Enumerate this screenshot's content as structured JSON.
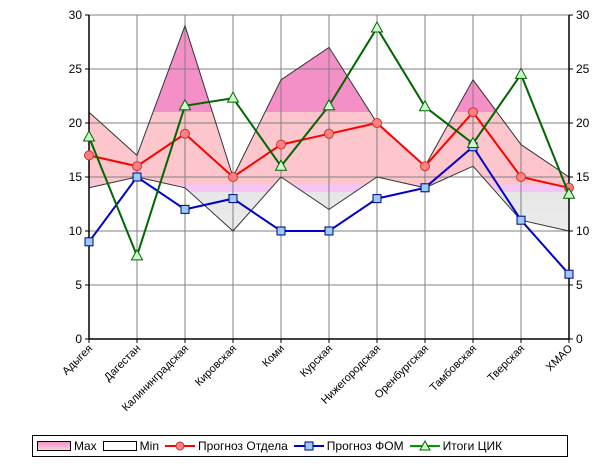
{
  "chart_data": {
    "type": "line",
    "title": "",
    "xlabel": "",
    "ylabel": "",
    "ylim": [
      0,
      30
    ],
    "y_ticks": [
      0,
      5,
      10,
      15,
      20,
      25,
      30
    ],
    "secondary_y_ticks": [
      0,
      5,
      10,
      15,
      20,
      25,
      30
    ],
    "grid": true,
    "legend_position": "bottom",
    "categories": [
      "Адыгея",
      "Дагестан",
      "Калининградская",
      "Кировская",
      "Коми",
      "Курская",
      "Нижегородская",
      "Оренбургская",
      "Тамбовская",
      "Тверская",
      "ХМАО"
    ],
    "series": [
      {
        "name": "Max",
        "kind": "area",
        "color": "#f48fc8",
        "values": [
          21,
          17,
          29,
          15,
          24,
          27,
          20,
          16,
          24,
          18,
          15
        ]
      },
      {
        "name": "Min",
        "kind": "area",
        "color": "#ffffff",
        "values": [
          14,
          15,
          14,
          10,
          15,
          12,
          15,
          14,
          16,
          11,
          10
        ]
      },
      {
        "name": "Прогноз Отдела",
        "kind": "line",
        "color": "#ff0000",
        "marker": "circle",
        "marker_fill": "#ff8080",
        "values": [
          17,
          16,
          19,
          15,
          18,
          19,
          20,
          16,
          21,
          15,
          14
        ]
      },
      {
        "name": "Прогноз ФОМ",
        "kind": "line",
        "color": "#0000cc",
        "marker": "square",
        "marker_fill": "#99ccff",
        "values": [
          9,
          15,
          12,
          13,
          10,
          10,
          13,
          14,
          17.8,
          11,
          6
        ]
      },
      {
        "name": "Итоги ЦИК",
        "kind": "line",
        "color": "#006600",
        "marker": "triangle",
        "marker_fill": "#ccffcc",
        "values": [
          18.7,
          7.7,
          21.6,
          22.3,
          16,
          21.6,
          28.8,
          21.5,
          18.1,
          24.5,
          13.4
        ]
      }
    ]
  },
  "legend": {
    "items": [
      {
        "label": "Max"
      },
      {
        "label": "Min"
      },
      {
        "label": "Прогноз Отдела"
      },
      {
        "label": "Прогноз ФОМ"
      },
      {
        "label": "Итоги ЦИК"
      }
    ]
  }
}
